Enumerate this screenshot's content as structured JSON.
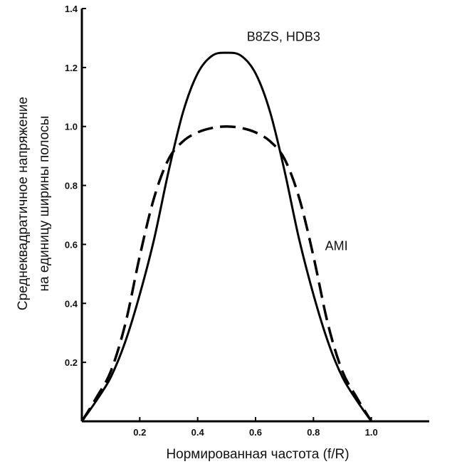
{
  "chart_data": {
    "type": "line",
    "title": "",
    "xlabel": "Нормированная  частота (f/R)",
    "ylabel_lines": [
      "Среднеквадратичное  напряжение",
      "на единицу ширины полосы"
    ],
    "xlim": [
      0,
      1.2
    ],
    "ylim": [
      0,
      1.4
    ],
    "xticks": [
      0.2,
      0.4,
      0.6,
      0.8,
      1.0
    ],
    "xtick_labels": [
      "0.2",
      "0.4",
      "0.6",
      "0.8",
      "1.0"
    ],
    "yticks": [
      0.2,
      0.4,
      0.6,
      0.8,
      1.0,
      1.2,
      1.4
    ],
    "ytick_labels": [
      "0.2",
      "0.4",
      "0.6",
      "0.8",
      "1.0",
      "1.2",
      "1.4"
    ],
    "grid": false,
    "legend": "none",
    "series": [
      {
        "name": "B8ZS, HDB3",
        "style": "solid",
        "x": [
          0,
          0.05,
          0.1,
          0.15,
          0.2,
          0.25,
          0.3,
          0.35,
          0.4,
          0.45,
          0.5,
          0.55,
          0.6,
          0.65,
          0.7,
          0.75,
          0.8,
          0.85,
          0.9,
          0.95,
          1.0
        ],
        "y": [
          0,
          0.07,
          0.15,
          0.27,
          0.43,
          0.62,
          0.85,
          1.05,
          1.18,
          1.24,
          1.25,
          1.24,
          1.18,
          1.05,
          0.85,
          0.62,
          0.43,
          0.27,
          0.15,
          0.07,
          0
        ]
      },
      {
        "name": "AMI",
        "style": "dashed",
        "x": [
          0,
          0.05,
          0.1,
          0.15,
          0.2,
          0.25,
          0.3,
          0.35,
          0.4,
          0.45,
          0.5,
          0.55,
          0.6,
          0.65,
          0.7,
          0.75,
          0.8,
          0.85,
          0.9,
          0.95,
          1.0
        ],
        "y": [
          0,
          0.08,
          0.17,
          0.33,
          0.56,
          0.76,
          0.89,
          0.95,
          0.98,
          0.995,
          1.0,
          0.995,
          0.98,
          0.95,
          0.89,
          0.76,
          0.56,
          0.33,
          0.17,
          0.08,
          0
        ]
      }
    ],
    "annotations": [
      {
        "text": "B8ZS, HDB3",
        "x": 0.57,
        "y": 1.29
      },
      {
        "text": "AMI",
        "x": 0.84,
        "y": 0.58
      }
    ]
  }
}
